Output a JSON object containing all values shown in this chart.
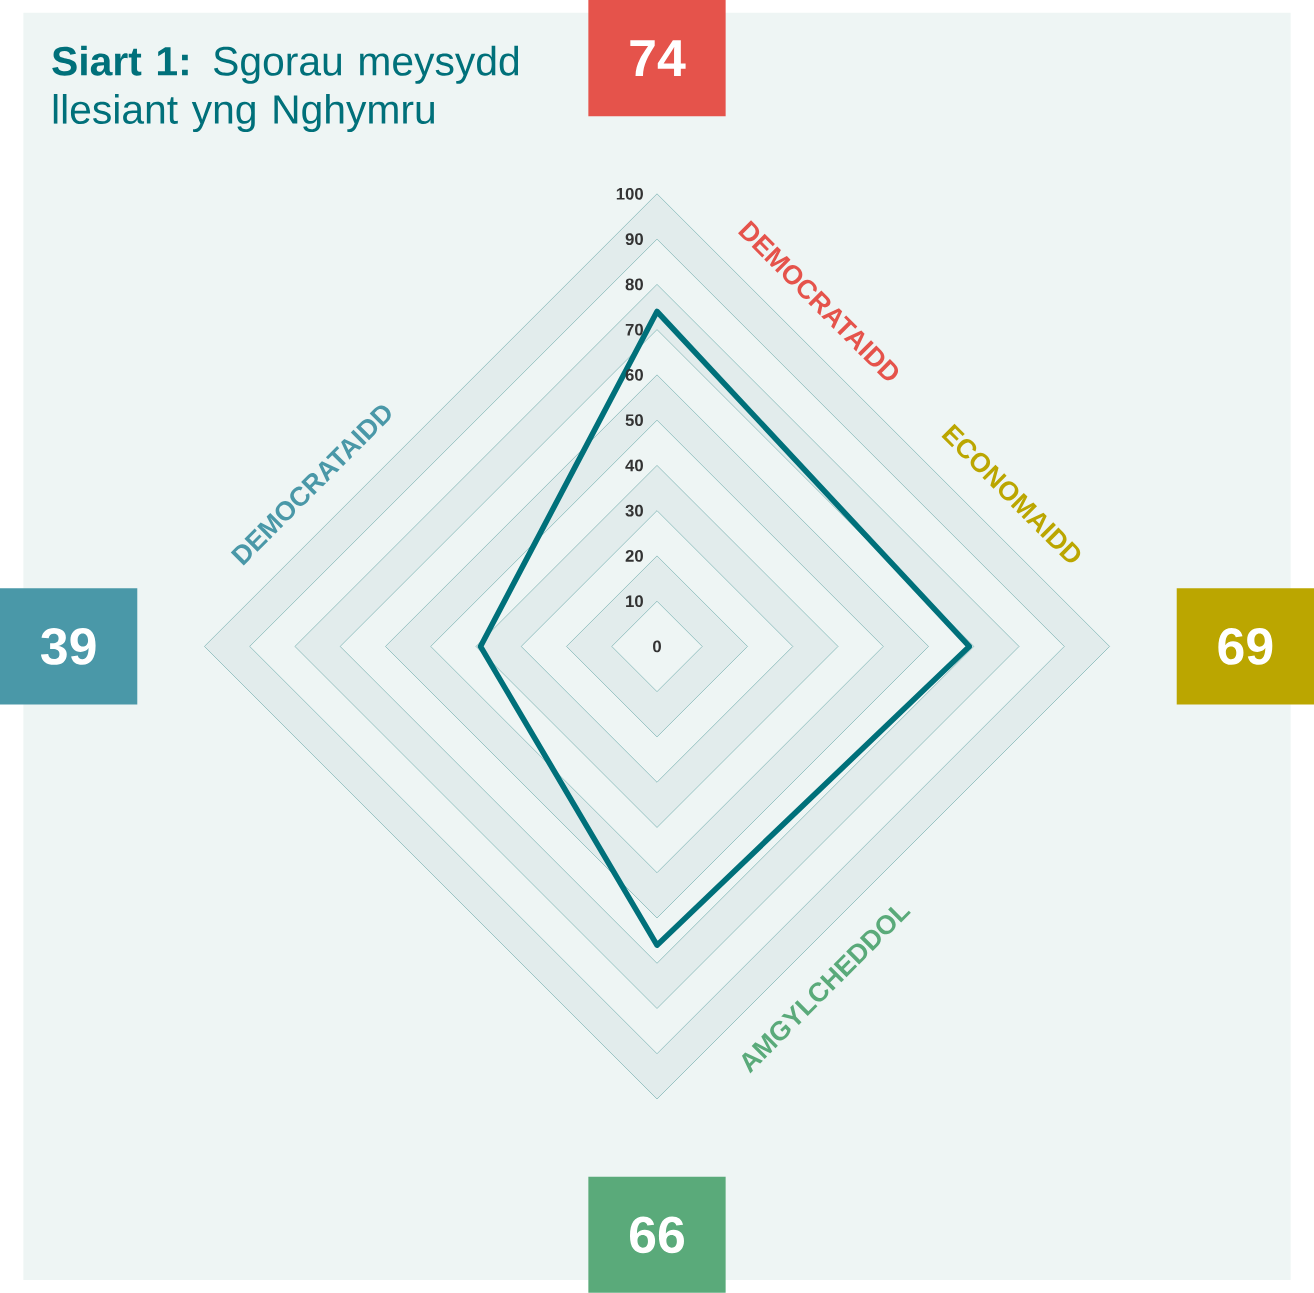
{
  "chart_data": {
    "type": "radar",
    "title": "**Siart  1:** Sgorau meysydd llesiant yng Nghymru",
    "categories": [
      "DEMOCRATAIDD",
      "ECONOMAIDD",
      "AMGYLCHEDDOL",
      "DEMOCRATAIDD"
    ],
    "colors": [
      "#e5534b",
      "#bba600",
      "#5aaa7a",
      "#4a98a8"
    ],
    "series": [
      {
        "color": "#00707a",
        "values": [
          74,
          69,
          66,
          39
        ]
      }
    ],
    "ylim": [
      0,
      100
    ],
    "yticks": [
      0,
      10,
      20,
      30,
      40,
      50,
      60,
      70,
      80,
      90,
      100
    ],
    "grid": true,
    "annotations": [
      "74",
      "69",
      "66",
      "39"
    ]
  }
}
